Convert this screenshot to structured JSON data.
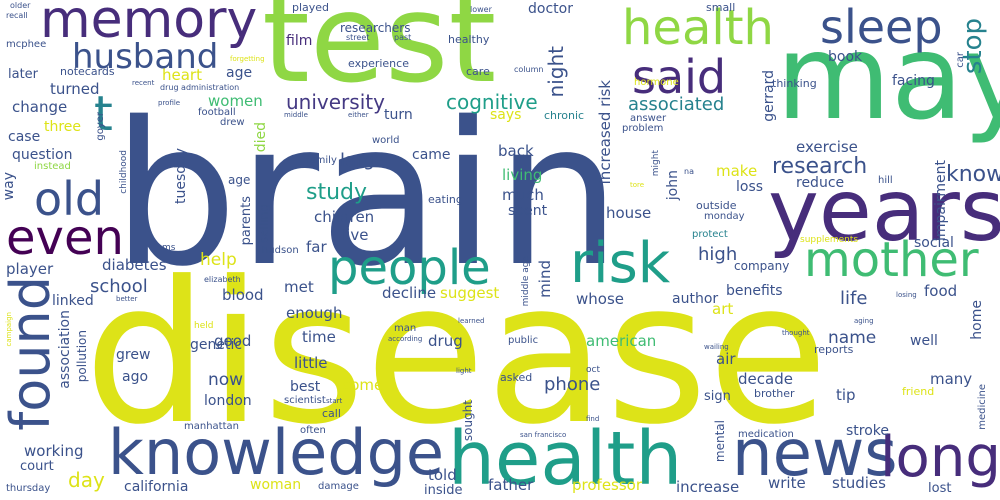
{
  "words": [
    {
      "id": "brain",
      "text": "brain"
    },
    {
      "id": "disease",
      "text": "disease"
    },
    {
      "id": "test",
      "text": "test"
    },
    {
      "id": "may",
      "text": "may"
    },
    {
      "id": "years",
      "text": "years"
    },
    {
      "id": "health_big",
      "text": "health"
    },
    {
      "id": "knowledge",
      "text": "knowledge"
    },
    {
      "id": "news",
      "text": "news"
    },
    {
      "id": "long",
      "text": "long"
    },
    {
      "id": "memory",
      "text": "memory"
    },
    {
      "id": "sleep",
      "text": "sleep"
    },
    {
      "id": "health_top",
      "text": "health"
    },
    {
      "id": "said",
      "text": "said"
    },
    {
      "id": "husband",
      "text": "husband"
    },
    {
      "id": "risk",
      "text": "risk"
    },
    {
      "id": "people",
      "text": "people"
    },
    {
      "id": "mother",
      "text": "mother"
    },
    {
      "id": "found",
      "text": "found"
    },
    {
      "id": "old",
      "text": "old"
    },
    {
      "id": "even",
      "text": "even"
    },
    {
      "id": "t",
      "text": "t"
    },
    {
      "id": "stop",
      "text": "stop"
    },
    {
      "id": "university",
      "text": "university"
    },
    {
      "id": "cognitive",
      "text": "cognitive"
    },
    {
      "id": "study",
      "text": "study"
    },
    {
      "id": "research",
      "text": "research"
    },
    {
      "id": "know",
      "text": "know"
    },
    {
      "id": "exercise",
      "text": "exercise"
    },
    {
      "id": "reduce",
      "text": "reduce"
    },
    {
      "id": "increased_risk",
      "text": "increased risk"
    },
    {
      "id": "night",
      "text": "night"
    },
    {
      "id": "associated",
      "text": "associated"
    },
    {
      "id": "says",
      "text": "says"
    },
    {
      "id": "turn",
      "text": "turn"
    },
    {
      "id": "chronic",
      "text": "chronic"
    },
    {
      "id": "answer",
      "text": "answer"
    },
    {
      "id": "problem",
      "text": "problem"
    },
    {
      "id": "gerrard",
      "text": "gerrard"
    },
    {
      "id": "impairment",
      "text": "impairment"
    },
    {
      "id": "age_top",
      "text": "age"
    },
    {
      "id": "women",
      "text": "women"
    },
    {
      "id": "heart",
      "text": "heart"
    },
    {
      "id": "film",
      "text": "film"
    },
    {
      "id": "researchers",
      "text": "researchers"
    },
    {
      "id": "doctor",
      "text": "doctor"
    },
    {
      "id": "healthy",
      "text": "healthy"
    },
    {
      "id": "book",
      "text": "book"
    },
    {
      "id": "facing",
      "text": "facing"
    },
    {
      "id": "thinking",
      "text": "thinking"
    },
    {
      "id": "hormone",
      "text": "hormone"
    },
    {
      "id": "small",
      "text": "small"
    },
    {
      "id": "car",
      "text": "car"
    },
    {
      "id": "played",
      "text": "played"
    },
    {
      "id": "street",
      "text": "street"
    },
    {
      "id": "past",
      "text": "past"
    },
    {
      "id": "lower",
      "text": "lower"
    },
    {
      "id": "experience",
      "text": "experience"
    },
    {
      "id": "care",
      "text": "care"
    },
    {
      "id": "column",
      "text": "column"
    },
    {
      "id": "later",
      "text": "later"
    },
    {
      "id": "notecards",
      "text": "notecards"
    },
    {
      "id": "turned",
      "text": "turned"
    },
    {
      "id": "change",
      "text": "change"
    },
    {
      "id": "three",
      "text": "three"
    },
    {
      "id": "case",
      "text": "case"
    },
    {
      "id": "question",
      "text": "question"
    },
    {
      "id": "mcphee",
      "text": "mcphee"
    },
    {
      "id": "older",
      "text": "older"
    },
    {
      "id": "recall",
      "text": "recall"
    },
    {
      "id": "goyer",
      "text": "goyer"
    },
    {
      "id": "recent",
      "text": "recent"
    },
    {
      "id": "drug_administration",
      "text": "drug administration"
    },
    {
      "id": "profile",
      "text": "profile"
    },
    {
      "id": "football",
      "text": "football"
    },
    {
      "id": "drew",
      "text": "drew"
    },
    {
      "id": "forgetting",
      "text": "forgetting"
    },
    {
      "id": "instead",
      "text": "instead"
    },
    {
      "id": "childhood",
      "text": "childhood"
    },
    {
      "id": "middle_top",
      "text": "middle"
    },
    {
      "id": "either",
      "text": "either"
    },
    {
      "id": "way",
      "text": "way"
    },
    {
      "id": "tuesday",
      "text": "tuesday"
    },
    {
      "id": "parents",
      "text": "parents"
    },
    {
      "id": "selling",
      "text": "selling"
    },
    {
      "id": "died",
      "text": "died"
    },
    {
      "id": "large",
      "text": "large"
    },
    {
      "id": "world",
      "text": "world"
    },
    {
      "id": "came",
      "text": "came"
    },
    {
      "id": "back",
      "text": "back"
    },
    {
      "id": "living",
      "text": "living"
    },
    {
      "id": "much",
      "text": "much"
    },
    {
      "id": "spent",
      "text": "spent"
    },
    {
      "id": "john",
      "text": "john"
    },
    {
      "id": "might",
      "text": "might"
    },
    {
      "id": "na",
      "text": "na"
    },
    {
      "id": "make",
      "text": "make"
    },
    {
      "id": "loss",
      "text": "loss"
    },
    {
      "id": "outside",
      "text": "outside"
    },
    {
      "id": "monday",
      "text": "monday"
    },
    {
      "id": "hill",
      "text": "hill"
    },
    {
      "id": "family",
      "text": "family"
    },
    {
      "id": "eating",
      "text": "eating"
    },
    {
      "id": "house",
      "text": "house"
    },
    {
      "id": "tore",
      "text": "tore"
    },
    {
      "id": "protect",
      "text": "protect"
    },
    {
      "id": "social",
      "text": "social"
    },
    {
      "id": "children",
      "text": "children"
    },
    {
      "id": "live",
      "text": "live"
    },
    {
      "id": "far",
      "text": "far"
    },
    {
      "id": "hudson",
      "text": "hudson"
    },
    {
      "id": "ms",
      "text": "ms"
    },
    {
      "id": "supplements",
      "text": "supplements"
    },
    {
      "id": "high",
      "text": "high"
    },
    {
      "id": "company",
      "text": "company"
    },
    {
      "id": "age_mid",
      "text": "age"
    },
    {
      "id": "middle_age",
      "text": "middle age"
    },
    {
      "id": "help",
      "text": "help"
    },
    {
      "id": "diabetes",
      "text": "diabetes"
    },
    {
      "id": "player",
      "text": "player"
    },
    {
      "id": "elizabeth",
      "text": "elizabeth"
    },
    {
      "id": "school",
      "text": "school"
    },
    {
      "id": "blood",
      "text": "blood"
    },
    {
      "id": "met",
      "text": "met"
    },
    {
      "id": "decline",
      "text": "decline"
    },
    {
      "id": "mind",
      "text": "mind"
    },
    {
      "id": "suggest",
      "text": "suggest"
    },
    {
      "id": "whose",
      "text": "whose"
    },
    {
      "id": "author",
      "text": "author"
    },
    {
      "id": "benefits",
      "text": "benefits"
    },
    {
      "id": "life",
      "text": "life"
    },
    {
      "id": "food",
      "text": "food"
    },
    {
      "id": "losing",
      "text": "losing"
    },
    {
      "id": "aging",
      "text": "aging"
    },
    {
      "id": "home",
      "text": "home"
    },
    {
      "id": "better",
      "text": "better"
    },
    {
      "id": "linked",
      "text": "linked"
    },
    {
      "id": "association",
      "text": "association"
    },
    {
      "id": "pollution",
      "text": "pollution"
    },
    {
      "id": "campaign",
      "text": "campaign"
    },
    {
      "id": "enough",
      "text": "enough"
    },
    {
      "id": "time",
      "text": "time"
    },
    {
      "id": "held",
      "text": "held"
    },
    {
      "id": "genetic",
      "text": "genetic"
    },
    {
      "id": "good",
      "text": "good"
    },
    {
      "id": "grew",
      "text": "grew"
    },
    {
      "id": "ago",
      "text": "ago"
    },
    {
      "id": "little",
      "text": "little"
    },
    {
      "id": "now",
      "text": "now"
    },
    {
      "id": "learned",
      "text": "learned"
    },
    {
      "id": "man",
      "text": "man"
    },
    {
      "id": "according",
      "text": "according"
    },
    {
      "id": "public",
      "text": "public"
    },
    {
      "id": "drug",
      "text": "drug"
    },
    {
      "id": "american",
      "text": "american"
    },
    {
      "id": "art",
      "text": "art"
    },
    {
      "id": "name",
      "text": "name"
    },
    {
      "id": "thought",
      "text": "thought"
    },
    {
      "id": "well",
      "text": "well"
    },
    {
      "id": "reports",
      "text": "reports"
    },
    {
      "id": "wailing",
      "text": "wailing"
    },
    {
      "id": "air",
      "text": "air"
    },
    {
      "id": "decade",
      "text": "decade"
    },
    {
      "id": "many",
      "text": "many"
    },
    {
      "id": "light",
      "text": "light"
    },
    {
      "id": "oct",
      "text": "oct"
    },
    {
      "id": "phone",
      "text": "phone"
    },
    {
      "id": "come",
      "text": "come"
    },
    {
      "id": "best",
      "text": "best"
    },
    {
      "id": "london",
      "text": "london"
    },
    {
      "id": "sign",
      "text": "sign"
    },
    {
      "id": "brother",
      "text": "brother"
    },
    {
      "id": "tip",
      "text": "tip"
    },
    {
      "id": "friend",
      "text": "friend"
    },
    {
      "id": "medicine",
      "text": "medicine"
    },
    {
      "id": "scientist",
      "text": "scientist"
    },
    {
      "id": "start",
      "text": "start"
    },
    {
      "id": "call",
      "text": "call"
    },
    {
      "id": "asked",
      "text": "asked"
    },
    {
      "id": "sought",
      "text": "sought"
    },
    {
      "id": "mental",
      "text": "mental"
    },
    {
      "id": "find",
      "text": "find"
    },
    {
      "id": "medication",
      "text": "medication"
    },
    {
      "id": "stroke",
      "text": "stroke"
    },
    {
      "id": "working",
      "text": "working"
    },
    {
      "id": "manhattan",
      "text": "manhattan"
    },
    {
      "id": "often",
      "text": "often"
    },
    {
      "id": "san_francisco",
      "text": "san francisco"
    },
    {
      "id": "court",
      "text": "court"
    },
    {
      "id": "day",
      "text": "day"
    },
    {
      "id": "thursday",
      "text": "thursday"
    },
    {
      "id": "california",
      "text": "california"
    },
    {
      "id": "woman",
      "text": "woman"
    },
    {
      "id": "damage",
      "text": "damage"
    },
    {
      "id": "told",
      "text": "told"
    },
    {
      "id": "inside",
      "text": "inside"
    },
    {
      "id": "father",
      "text": "father"
    },
    {
      "id": "professor",
      "text": "professor"
    },
    {
      "id": "increase",
      "text": "increase"
    },
    {
      "id": "write",
      "text": "write"
    },
    {
      "id": "studies",
      "text": "studies"
    },
    {
      "id": "lost",
      "text": "lost"
    }
  ]
}
